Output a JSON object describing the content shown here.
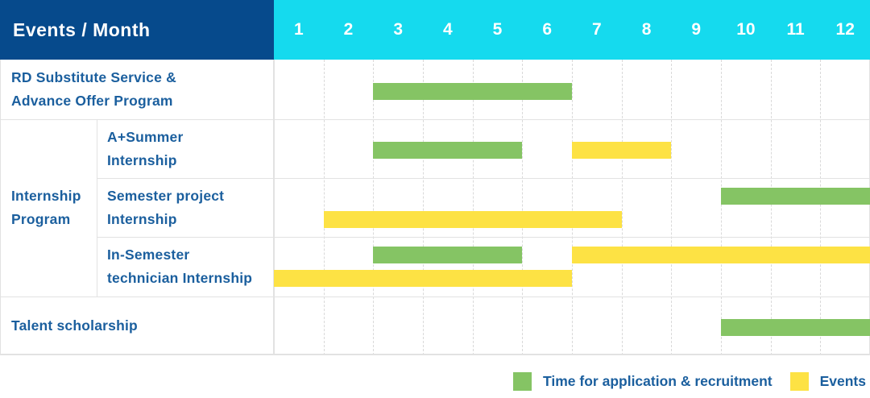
{
  "header": {
    "title": "Events / Month",
    "months": [
      "1",
      "2",
      "3",
      "4",
      "5",
      "6",
      "7",
      "8",
      "9",
      "10",
      "11",
      "12"
    ]
  },
  "colors": {
    "header_navy": "#064a8c",
    "header_cyan": "#15daee",
    "bar_green": "#85c464",
    "bar_yellow": "#fde244",
    "label_blue": "#1b5f9e"
  },
  "group": {
    "label_lines": [
      "Internship",
      "Program"
    ]
  },
  "rows": [
    {
      "id": "rd-substitute",
      "label_lines": [
        "RD Substitute Service &",
        "Advance Offer Program"
      ],
      "in_group": false,
      "bars": [
        {
          "color": "bar_green",
          "start_month": 3,
          "end_month": 6,
          "lane": "center"
        }
      ]
    },
    {
      "id": "a-summer-internship",
      "label_lines": [
        "A+Summer",
        "Internship"
      ],
      "in_group": true,
      "bars": [
        {
          "color": "bar_green",
          "start_month": 3,
          "end_month": 5,
          "lane": "center"
        },
        {
          "color": "bar_yellow",
          "start_month": 7,
          "end_month": 8,
          "lane": "center"
        }
      ]
    },
    {
      "id": "semester-project-internship",
      "label_lines": [
        "Semester project",
        "Internship"
      ],
      "in_group": true,
      "bars": [
        {
          "color": "bar_green",
          "start_month": 10,
          "end_month": 12,
          "lane": "top"
        },
        {
          "color": "bar_yellow",
          "start_month": 2,
          "end_month": 7,
          "lane": "bottom"
        }
      ]
    },
    {
      "id": "in-semester-technician-internship",
      "label_lines": [
        "In-Semester",
        "technician Internship"
      ],
      "in_group": true,
      "bars": [
        {
          "color": "bar_green",
          "start_month": 3,
          "end_month": 5,
          "lane": "top"
        },
        {
          "color": "bar_yellow",
          "start_month": 7,
          "end_month": 12,
          "lane": "top"
        },
        {
          "color": "bar_yellow",
          "start_month": 1,
          "end_month": 6,
          "lane": "bottom"
        }
      ]
    },
    {
      "id": "talent-scholarship",
      "label_lines": [
        "Talent scholarship"
      ],
      "in_group": false,
      "bars": [
        {
          "color": "bar_green",
          "start_month": 10,
          "end_month": 12,
          "lane": "center"
        }
      ]
    }
  ],
  "legend": {
    "items": [
      {
        "color": "bar_green",
        "label": "Time for application & recruitment"
      },
      {
        "color": "bar_yellow",
        "label": "Events"
      }
    ]
  },
  "chart_data": {
    "type": "bar",
    "subtype": "gantt",
    "title": "Events / Month",
    "x_axis": {
      "label": "Month",
      "ticks": [
        1,
        2,
        3,
        4,
        5,
        6,
        7,
        8,
        9,
        10,
        11,
        12
      ],
      "range": [
        1,
        12
      ]
    },
    "legend": [
      "Time for application & recruitment",
      "Events"
    ],
    "legend_position": "bottom-right",
    "grid": "dashed-vertical",
    "rows": [
      {
        "category": "RD Substitute Service & Advance Offer Program",
        "group": null,
        "spans": [
          {
            "series": "Time for application & recruitment",
            "start_month": 3,
            "end_month": 6
          }
        ]
      },
      {
        "category": "A+Summer Internship",
        "group": "Internship Program",
        "spans": [
          {
            "series": "Time for application & recruitment",
            "start_month": 3,
            "end_month": 5
          },
          {
            "series": "Events",
            "start_month": 7,
            "end_month": 8
          }
        ]
      },
      {
        "category": "Semester project Internship",
        "group": "Internship Program",
        "spans": [
          {
            "series": "Time for application & recruitment",
            "start_month": 10,
            "end_month": 12
          },
          {
            "series": "Events",
            "start_month": 2,
            "end_month": 7
          }
        ]
      },
      {
        "category": "In-Semester technician Internship",
        "group": "Internship Program",
        "spans": [
          {
            "series": "Time for application & recruitment",
            "start_month": 3,
            "end_month": 5
          },
          {
            "series": "Events",
            "start_month": 7,
            "end_month": 12
          },
          {
            "series": "Events",
            "start_month": 1,
            "end_month": 6
          }
        ]
      },
      {
        "category": "Talent scholarship",
        "group": null,
        "spans": [
          {
            "series": "Time for application & recruitment",
            "start_month": 10,
            "end_month": 12
          }
        ]
      }
    ]
  }
}
